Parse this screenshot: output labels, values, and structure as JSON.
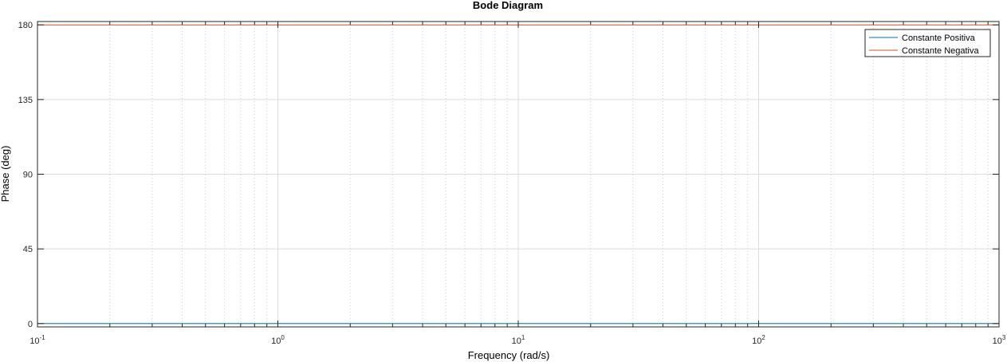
{
  "chart_data": {
    "type": "line",
    "title": "Bode Diagram",
    "xlabel": "Frequency  (rad/s)",
    "ylabel": "Phase (deg)",
    "xscale": "log",
    "xlim": [
      0.1,
      1000
    ],
    "ylim": [
      -2,
      182
    ],
    "yticks": [
      "0",
      "45",
      "90",
      "135",
      "180"
    ],
    "ytick_values": [
      0,
      45,
      90,
      135,
      180
    ],
    "xtick_values": [
      0.1,
      1,
      10,
      100,
      1000
    ],
    "xticks": [
      {
        "base": "10",
        "exp": "-1"
      },
      {
        "base": "10",
        "exp": "0"
      },
      {
        "base": "10",
        "exp": "1"
      },
      {
        "base": "10",
        "exp": "2"
      },
      {
        "base": "10",
        "exp": "3"
      }
    ],
    "grid": true,
    "legend_position": "top-right",
    "series": [
      {
        "name": "Constante Positiva",
        "color": "#0072BD",
        "x": [
          0.1,
          1000
        ],
        "y": [
          0,
          0
        ]
      },
      {
        "name": "Constante Negativa",
        "color": "#D95319",
        "x": [
          0.1,
          1000
        ],
        "y": [
          180,
          180
        ]
      }
    ]
  }
}
